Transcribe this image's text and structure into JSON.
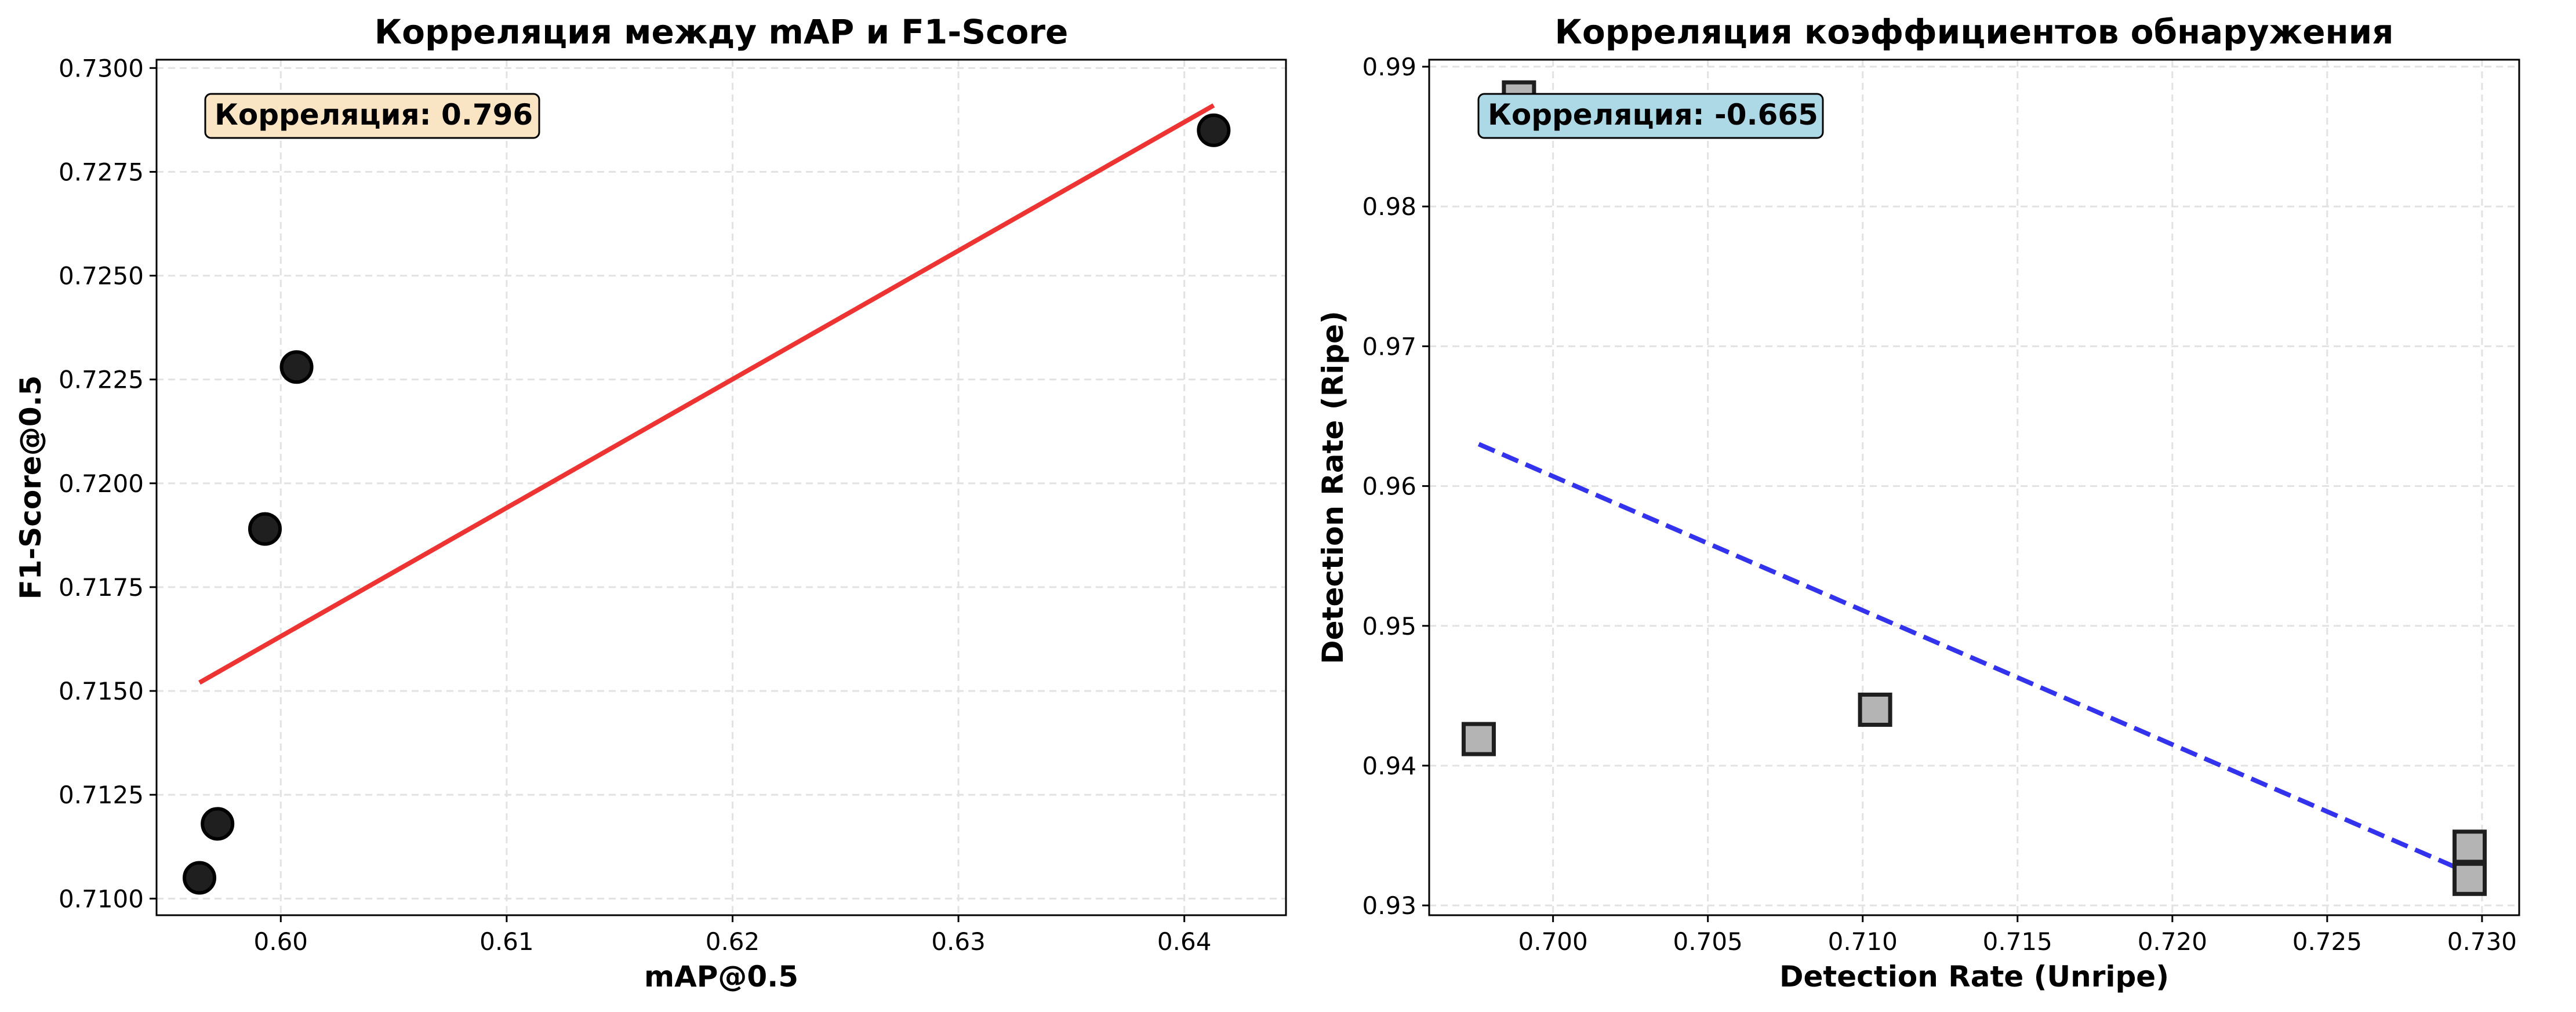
{
  "chart_data": [
    {
      "type": "scatter",
      "title": "Корреляция между mAP и F1-Score",
      "xlabel": "mAP@0.5",
      "ylabel": "F1-Score@0.5",
      "xlim": [
        0.5945,
        0.6445
      ],
      "ylim": [
        0.7096,
        0.7302
      ],
      "xticks": [
        0.6,
        0.61,
        0.62,
        0.63,
        0.64
      ],
      "xtick_labels": [
        "0.60",
        "0.61",
        "0.62",
        "0.63",
        "0.64"
      ],
      "yticks": [
        0.71,
        0.7125,
        0.715,
        0.7175,
        0.72,
        0.7225,
        0.725,
        0.7275,
        0.73
      ],
      "ytick_labels": [
        "0.7100",
        "0.7125",
        "0.7150",
        "0.7175",
        "0.7200",
        "0.7225",
        "0.7250",
        "0.7275",
        "0.7300"
      ],
      "grid": true,
      "marker": "circle",
      "marker_color": "#1f1f1f",
      "points": [
        {
          "x": 0.5964,
          "y": 0.7105
        },
        {
          "x": 0.5972,
          "y": 0.7118
        },
        {
          "x": 0.5993,
          "y": 0.7189
        },
        {
          "x": 0.6007,
          "y": 0.7228
        },
        {
          "x": 0.6413,
          "y": 0.7285
        }
      ],
      "trendline": {
        "x": [
          0.5964,
          0.6413
        ],
        "y": [
          0.7152,
          0.7291
        ],
        "color": "#ee3333",
        "style": "solid"
      },
      "annotation": {
        "label": "Корреляция: 0.796",
        "background": "#f9e4c4"
      }
    },
    {
      "type": "scatter",
      "title": "Корреляция коэффициентов обнаружения",
      "xlabel": "Detection Rate (Unripe)",
      "ylabel": "Detection Rate (Ripe)",
      "xlim": [
        0.696,
        0.7312
      ],
      "ylim": [
        0.9293,
        0.9905
      ],
      "xticks": [
        0.7,
        0.705,
        0.71,
        0.715,
        0.72,
        0.725,
        0.73
      ],
      "xtick_labels": [
        "0.700",
        "0.705",
        "0.710",
        "0.715",
        "0.720",
        "0.725",
        "0.730"
      ],
      "yticks": [
        0.93,
        0.94,
        0.95,
        0.96,
        0.97,
        0.98,
        0.99
      ],
      "ytick_labels": [
        "0.93",
        "0.94",
        "0.95",
        "0.96",
        "0.97",
        "0.98",
        "0.99"
      ],
      "grid": true,
      "marker": "square",
      "marker_color": "#b4b4b4",
      "points": [
        {
          "x": 0.6976,
          "y": 0.9419
        },
        {
          "x": 0.6989,
          "y": 0.9878
        },
        {
          "x": 0.7104,
          "y": 0.944
        },
        {
          "x": 0.7296,
          "y": 0.9342
        },
        {
          "x": 0.7296,
          "y": 0.9319
        }
      ],
      "trendline": {
        "x": [
          0.6976,
          0.7296
        ],
        "y": [
          0.963,
          0.9323
        ],
        "color": "#3333ee",
        "style": "dashed"
      },
      "annotation": {
        "label": "Корреляция: -0.665",
        "background": "#add8e6"
      }
    }
  ]
}
